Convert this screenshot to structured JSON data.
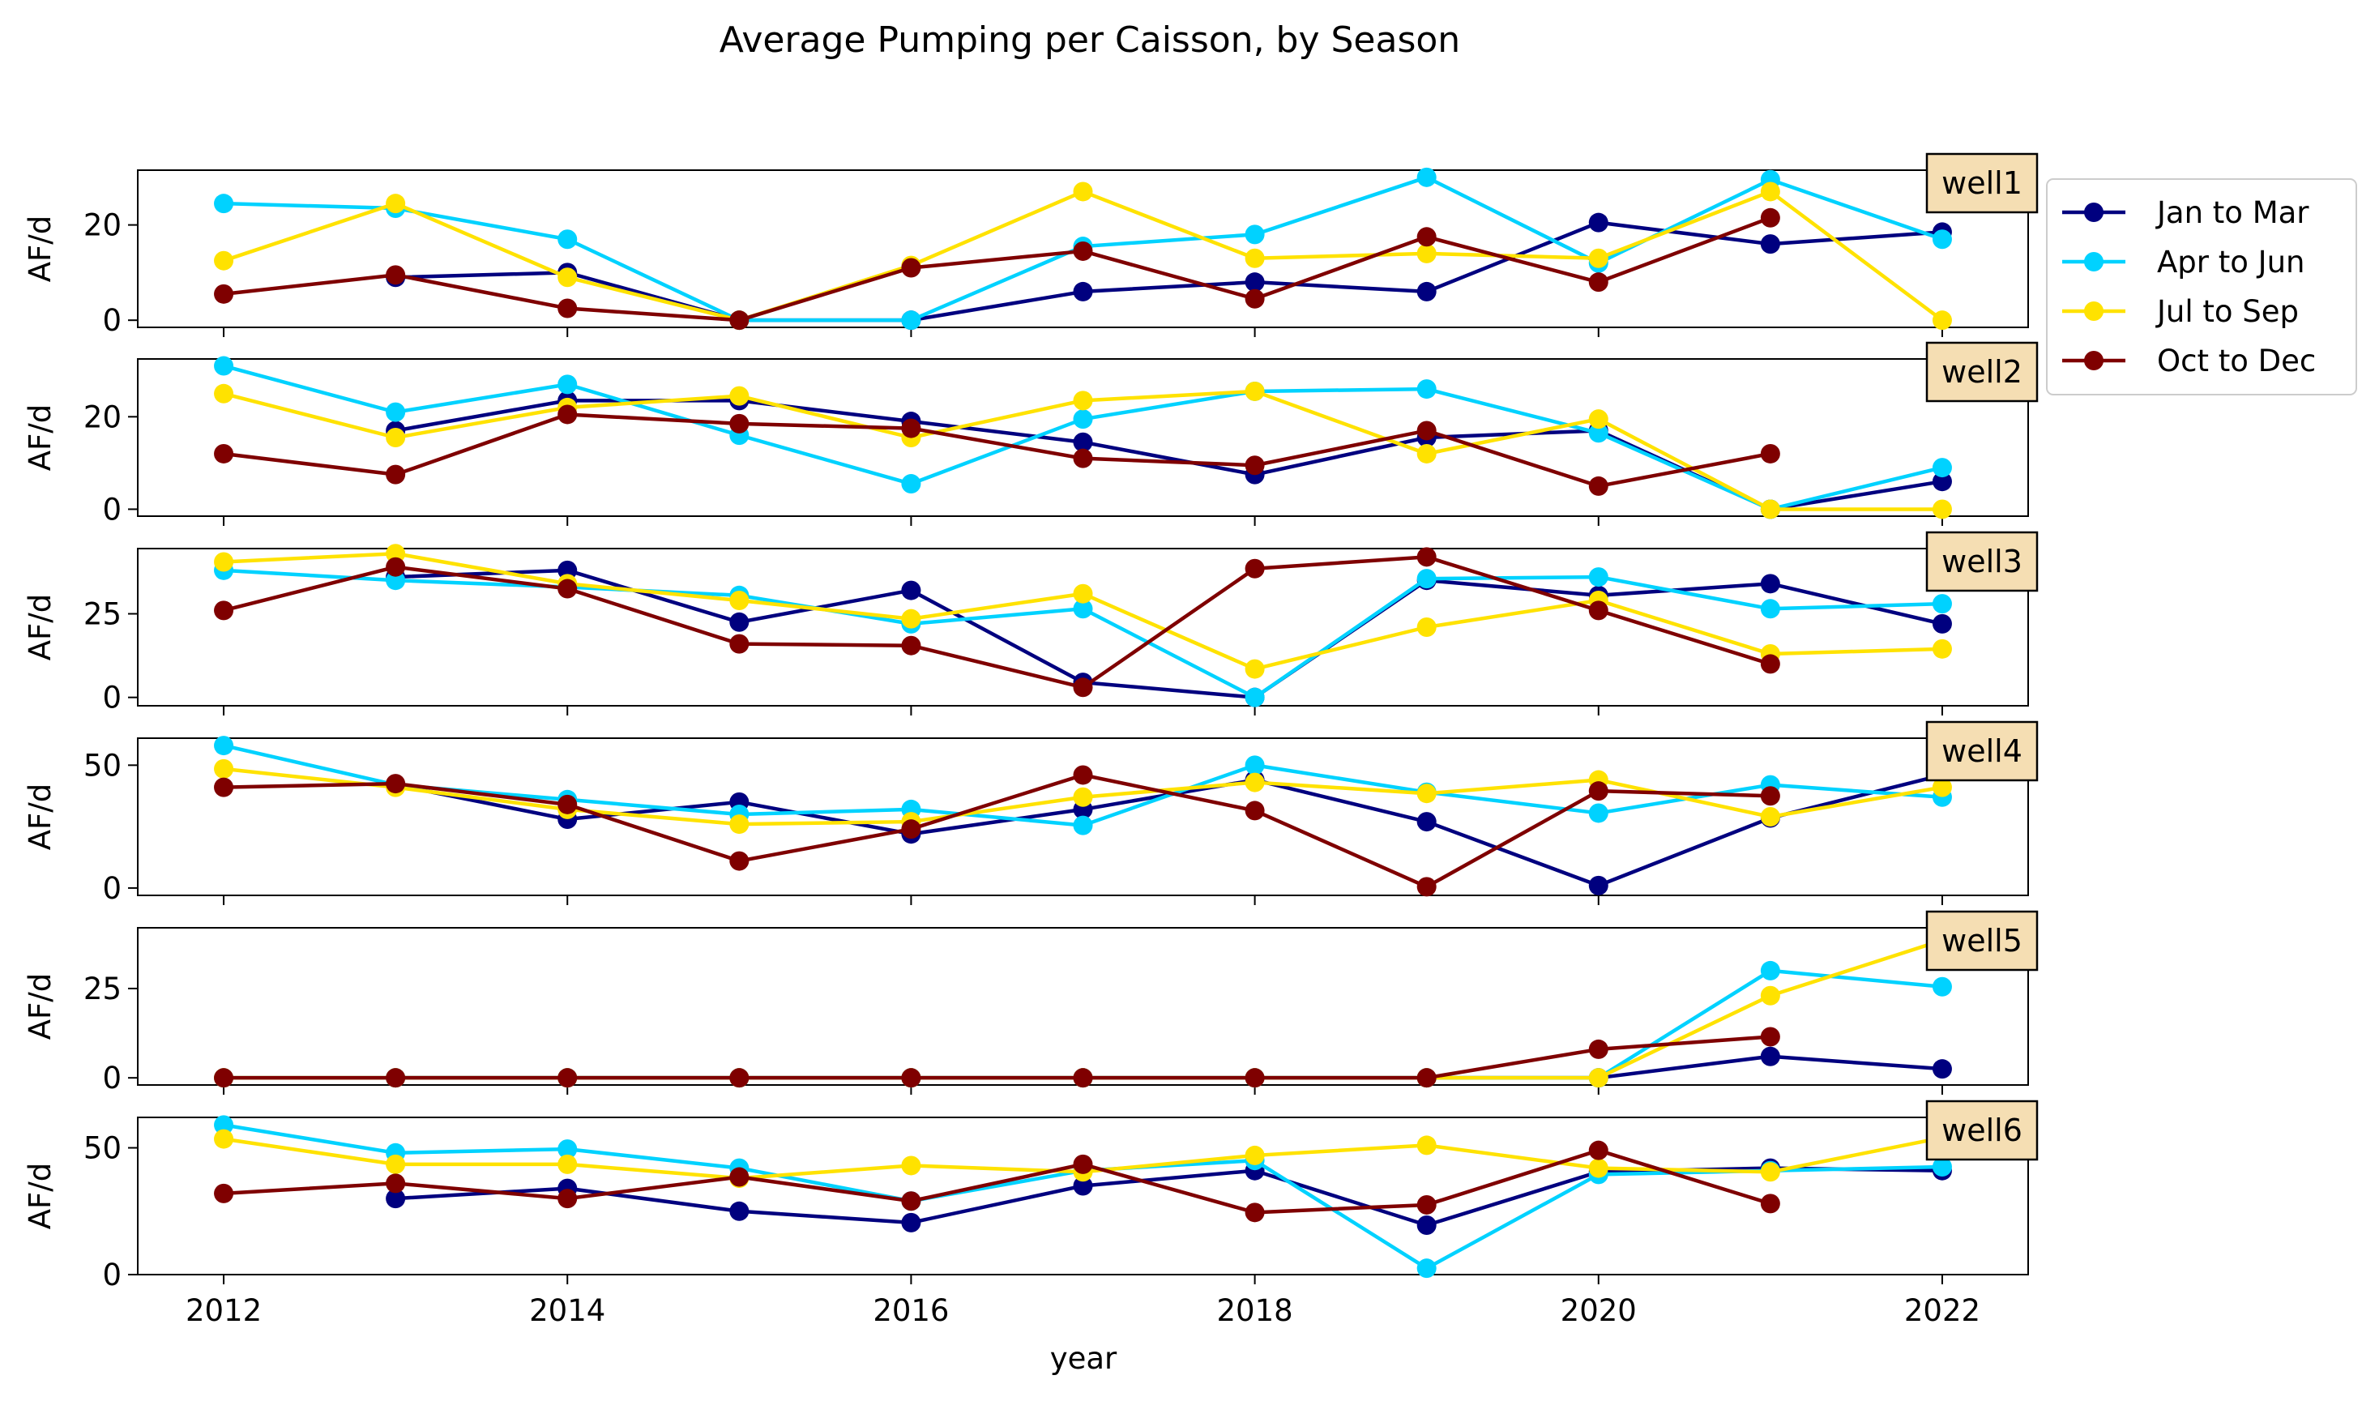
{
  "chart_data": {
    "type": "line",
    "title": "Average Pumping per Caisson, by Season",
    "xlabel": "year",
    "ylabel": "AF/d",
    "x": [
      2012,
      2013,
      2014,
      2015,
      2016,
      2017,
      2018,
      2019,
      2020,
      2021,
      2022
    ],
    "xlim": [
      2011.5,
      2022.5
    ],
    "xticks": [
      2012,
      2014,
      2016,
      2018,
      2020,
      2022
    ],
    "grid": false,
    "legend_position": "right, outside the top panels",
    "series_styles": [
      {
        "name": "Jan to Mar",
        "color": "#00007f"
      },
      {
        "name": "Apr to Jun",
        "color": "#00d2ff"
      },
      {
        "name": "Jul to Sep",
        "color": "#ffe200"
      },
      {
        "name": "Oct to Dec",
        "color": "#7f0000"
      }
    ],
    "panels": [
      {
        "label": "well1",
        "ylim": [
          -1.5,
          31.5
        ],
        "yticks": [
          0,
          20
        ],
        "series": [
          {
            "name": "Jan to Mar",
            "values": [
              null,
              9,
              10,
              0,
              0,
              6,
              8,
              6,
              20.5,
              16,
              18.5
            ]
          },
          {
            "name": "Apr to Jun",
            "values": [
              24.5,
              23.5,
              17,
              0,
              0,
              15.5,
              18,
              30,
              12,
              29.5,
              17
            ]
          },
          {
            "name": "Jul to Sep",
            "values": [
              12.5,
              24.5,
              9,
              0,
              11.5,
              27,
              13,
              14,
              13,
              27,
              0
            ]
          },
          {
            "name": "Oct to Dec",
            "values": [
              5.5,
              9.5,
              2.5,
              0,
              11,
              14.5,
              4.5,
              17.5,
              8,
              21.5,
              null
            ]
          }
        ]
      },
      {
        "label": "well2",
        "ylim": [
          -1.5,
          32.5
        ],
        "yticks": [
          0,
          20
        ],
        "series": [
          {
            "name": "Jan to Mar",
            "values": [
              null,
              17,
              23.5,
              23.5,
              19,
              14.5,
              7.5,
              15.5,
              17,
              0,
              6
            ]
          },
          {
            "name": "Apr to Jun",
            "values": [
              31,
              21,
              27,
              16,
              5.5,
              19.5,
              25.5,
              26,
              16.5,
              0,
              9
            ]
          },
          {
            "name": "Jul to Sep",
            "values": [
              25,
              15.5,
              22,
              24.5,
              15.5,
              23.5,
              25.5,
              12,
              19.5,
              0,
              0
            ]
          },
          {
            "name": "Oct to Dec",
            "values": [
              12,
              7.5,
              20.5,
              18.5,
              17.5,
              11,
              9.5,
              17,
              5,
              12,
              null
            ]
          }
        ]
      },
      {
        "label": "well3",
        "ylim": [
          -2.5,
          44.5
        ],
        "yticks": [
          0,
          25
        ],
        "series": [
          {
            "name": "Jan to Mar",
            "values": [
              null,
              36,
              38,
              22.5,
              32,
              4.5,
              0,
              35,
              30.5,
              34,
              22
            ]
          },
          {
            "name": "Apr to Jun",
            "values": [
              38,
              35,
              33,
              30.5,
              22,
              26.5,
              0,
              35.5,
              36,
              26.5,
              28
            ]
          },
          {
            "name": "Jul to Sep",
            "values": [
              40.5,
              43,
              34,
              29,
              23.5,
              31,
              8.5,
              21,
              29,
              13,
              14.5
            ]
          },
          {
            "name": "Oct to Dec",
            "values": [
              26,
              39,
              32.5,
              16,
              15.5,
              3,
              38.5,
              42,
              26,
              10,
              null
            ]
          }
        ]
      },
      {
        "label": "well4",
        "ylim": [
          -3,
          61
        ],
        "yticks": [
          0,
          50
        ],
        "series": [
          {
            "name": "Jan to Mar",
            "values": [
              null,
              42,
              28,
              35,
              22,
              32,
              44,
              27,
              1,
              28.5,
              46
            ]
          },
          {
            "name": "Apr to Jun",
            "values": [
              58,
              42,
              36,
              30,
              32,
              25.5,
              50,
              39,
              30.5,
              42,
              37
            ]
          },
          {
            "name": "Jul to Sep",
            "values": [
              48.5,
              41,
              32,
              26,
              27,
              37,
              43,
              38.5,
              44,
              29,
              41
            ]
          },
          {
            "name": "Oct to Dec",
            "values": [
              41,
              42.5,
              34,
              11,
              24,
              46,
              31.5,
              0.5,
              39.5,
              37.5,
              null
            ]
          }
        ]
      },
      {
        "label": "well5",
        "ylim": [
          -2,
          42
        ],
        "yticks": [
          0,
          25
        ],
        "series": [
          {
            "name": "Jan to Mar",
            "values": [
              null,
              0,
              0,
              0,
              0,
              0,
              0,
              0,
              0,
              6,
              2.5
            ]
          },
          {
            "name": "Apr to Jun",
            "values": [
              0,
              0,
              0,
              0,
              0,
              0,
              0,
              0,
              0,
              30,
              25.5
            ]
          },
          {
            "name": "Jul to Sep",
            "values": [
              0,
              0,
              0,
              0,
              0,
              0,
              0,
              0,
              0,
              23,
              38.5
            ]
          },
          {
            "name": "Oct to Dec",
            "values": [
              0,
              0,
              0,
              0,
              0,
              0,
              0,
              0,
              8,
              11.5,
              null
            ]
          }
        ]
      },
      {
        "label": "well6",
        "ylim": [
          0,
          62
        ],
        "yticks": [
          0,
          50
        ],
        "series": [
          {
            "name": "Jan to Mar",
            "values": [
              null,
              30,
              34,
              25,
              20.5,
              35,
              41,
              19.5,
              40.5,
              42,
              41
            ]
          },
          {
            "name": "Apr to Jun",
            "values": [
              59,
              48,
              49.5,
              42,
              29,
              41,
              45,
              2.5,
              39.5,
              41,
              42.5
            ]
          },
          {
            "name": "Jul to Sep",
            "values": [
              53.5,
              43.5,
              43.5,
              38,
              43,
              40.5,
              47,
              51,
              42,
              40.5,
              54
            ]
          },
          {
            "name": "Oct to Dec",
            "values": [
              32,
              36,
              30,
              38.5,
              29,
              43.5,
              24.5,
              27.5,
              49,
              28,
              null
            ]
          }
        ]
      }
    ]
  }
}
